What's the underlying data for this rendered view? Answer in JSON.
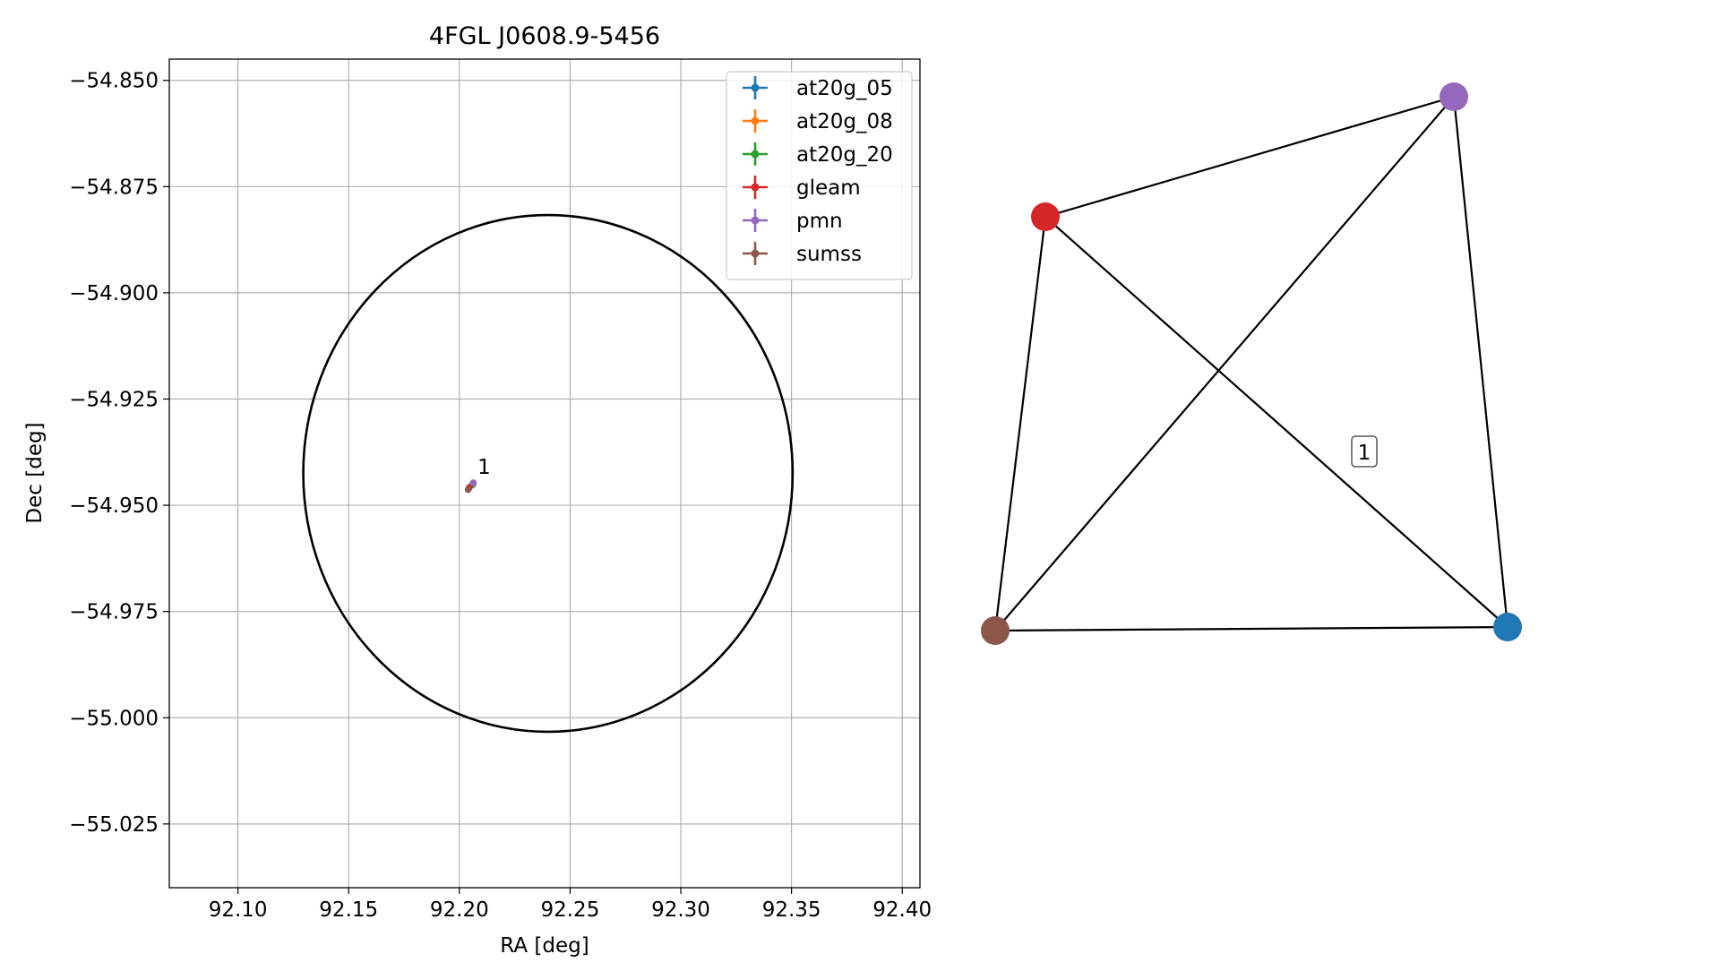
{
  "chart_data": [
    {
      "type": "scatter",
      "title": "4FGL J0608.9-5456",
      "xlabel": "RA [deg]",
      "ylabel": "Dec [deg]",
      "xlim": [
        92.069,
        92.408
      ],
      "ylim": [
        -55.04,
        -54.845
      ],
      "xticks": [
        92.1,
        92.15,
        92.2,
        92.25,
        92.3,
        92.35,
        92.4
      ],
      "xtick_labels": [
        "92.10",
        "92.15",
        "92.20",
        "92.25",
        "92.30",
        "92.35",
        "92.40"
      ],
      "yticks": [
        -54.85,
        -54.875,
        -54.9,
        -54.925,
        -54.95,
        -54.975,
        -55.0,
        -55.025
      ],
      "ytick_labels": [
        "−54.850",
        "−54.875",
        "−54.900",
        "−54.925",
        "−54.950",
        "−54.975",
        "−55.000",
        "−55.025"
      ],
      "grid": true,
      "legend_position": "top-right",
      "ellipse": {
        "center_ra": 92.24,
        "center_dec": -54.9425,
        "semi_axis_ra": 0.1105,
        "semi_axis_dec": 0.0608,
        "color": "#000000"
      },
      "series": [
        {
          "name": "at20g_05",
          "color": "#1f77b4",
          "ra": 92.2062,
          "dec": -54.945
        },
        {
          "name": "at20g_08",
          "color": "#ff7f0e",
          "ra": 92.206,
          "dec": -54.9451
        },
        {
          "name": "at20g_20",
          "color": "#2ca02c",
          "ra": 92.2059,
          "dec": -54.9452
        },
        {
          "name": "gleam",
          "color": "#d62728",
          "ra": 92.2045,
          "dec": -54.9458
        },
        {
          "name": "pmn",
          "color": "#9467bd",
          "ra": 92.2063,
          "dec": -54.9447
        },
        {
          "name": "sumss",
          "color": "#8c564b",
          "ra": 92.204,
          "dec": -54.9463
        }
      ],
      "annotations": [
        {
          "text": "1",
          "ra": 92.207,
          "dec": -54.943
        }
      ]
    },
    {
      "type": "network",
      "nodes": [
        {
          "id": "red",
          "color": "#d62728"
        },
        {
          "id": "purple",
          "color": "#9467bd"
        },
        {
          "id": "brown",
          "color": "#8c564b"
        },
        {
          "id": "blue",
          "color": "#1f77b4"
        }
      ],
      "edges": [
        [
          "red",
          "purple"
        ],
        [
          "red",
          "brown"
        ],
        [
          "red",
          "blue"
        ],
        [
          "purple",
          "brown"
        ],
        [
          "purple",
          "blue"
        ],
        [
          "brown",
          "blue"
        ]
      ],
      "label": "1"
    }
  ]
}
